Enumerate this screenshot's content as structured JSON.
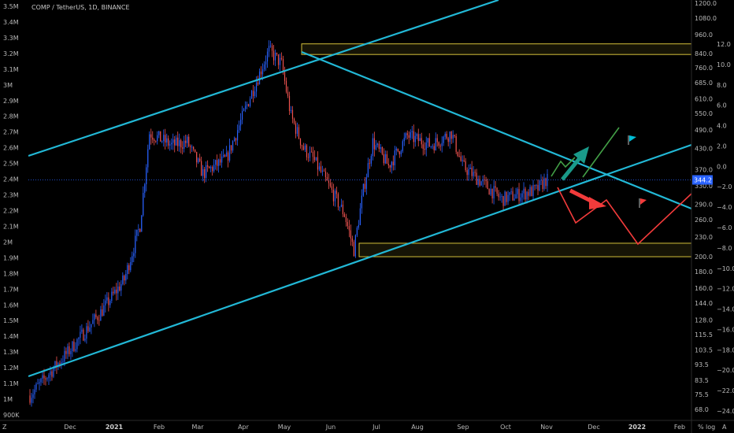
{
  "chart_data": {
    "type": "candlestick",
    "title": "COMP / TetherUS, 1D, BINANCE",
    "current_price": "344.2",
    "left_axis": {
      "ticks": [
        "3.5M",
        "3.4M",
        "3.3M",
        "3.2M",
        "3.1M",
        "3M",
        "2.9M",
        "2.8M",
        "2.7M",
        "2.6M",
        "2.5M",
        "2.4M",
        "2.3M",
        "2.2M",
        "2.1M",
        "2M",
        "1.9M",
        "1.8M",
        "1.7M",
        "1.6M",
        "1.5M",
        "1.4M",
        "1.3M",
        "1.2M",
        "1.1M",
        "1M",
        "900K"
      ]
    },
    "right_axis_price": {
      "ticks": [
        "1200.0",
        "1080.0",
        "960.0",
        "840.0",
        "760.0",
        "685.0",
        "610.0",
        "550.0",
        "490.0",
        "430.0",
        "370.0",
        "330.0",
        "290.0",
        "260.0",
        "230.0",
        "200.0",
        "180.0",
        "160.0",
        "144.0",
        "128.0",
        "115.5",
        "103.5",
        "93.5",
        "83.5",
        "75.5",
        "68.0"
      ],
      "scale": "log"
    },
    "right_axis_pct": {
      "ticks": [
        "12.0",
        "10.0",
        "8.0",
        "6.0",
        "4.0",
        "2.0",
        "0.0",
        "−2.0",
        "−4.0",
        "−6.0",
        "−8.0",
        "−10.0",
        "−12.0",
        "−14.0",
        "−16.0",
        "−18.0",
        "−20.0",
        "−22.0",
        "−24.0"
      ]
    },
    "x_axis": {
      "labels": [
        "Dec",
        "2021",
        "Feb",
        "Mar",
        "Apr",
        "May",
        "Jun",
        "Jul",
        "Aug",
        "Sep",
        "Oct",
        "Nov",
        "Dec",
        "2022",
        "Feb"
      ],
      "bold": [
        "2021",
        "2022"
      ]
    },
    "price_path_anchors": [
      {
        "t": 0,
        "p": 75
      },
      {
        "t": 25,
        "p": 103
      },
      {
        "t": 45,
        "p": 135
      },
      {
        "t": 60,
        "p": 170
      },
      {
        "t": 70,
        "p": 250
      },
      {
        "t": 76,
        "p": 480
      },
      {
        "t": 90,
        "p": 440
      },
      {
        "t": 100,
        "p": 450
      },
      {
        "t": 110,
        "p": 360
      },
      {
        "t": 125,
        "p": 400
      },
      {
        "t": 140,
        "p": 620
      },
      {
        "t": 152,
        "p": 860
      },
      {
        "t": 160,
        "p": 780
      },
      {
        "t": 166,
        "p": 540
      },
      {
        "t": 174,
        "p": 430
      },
      {
        "t": 180,
        "p": 400
      },
      {
        "t": 190,
        "p": 330
      },
      {
        "t": 200,
        "p": 270
      },
      {
        "t": 206,
        "p": 210
      },
      {
        "t": 212,
        "p": 320
      },
      {
        "t": 218,
        "p": 450
      },
      {
        "t": 228,
        "p": 380
      },
      {
        "t": 240,
        "p": 470
      },
      {
        "t": 255,
        "p": 440
      },
      {
        "t": 268,
        "p": 480
      },
      {
        "t": 275,
        "p": 380
      },
      {
        "t": 290,
        "p": 330
      },
      {
        "t": 300,
        "p": 300
      },
      {
        "t": 310,
        "p": 310
      },
      {
        "t": 322,
        "p": 320
      },
      {
        "t": 328,
        "p": 344
      }
    ],
    "zones": [
      {
        "name": "resistance-zone",
        "price_top": 900,
        "price_bottom": 835
      },
      {
        "name": "support-zone",
        "price_top": 220,
        "price_bottom": 200
      }
    ],
    "colors": {
      "up": "#2962ff",
      "down": "#ef5350",
      "channel": "#22b8d6",
      "zone": "#d4c13a",
      "bull": "#43a047",
      "bull_arrow": "#1a9a8a",
      "bear": "#f23b3b",
      "price_tag": "#2962ff"
    }
  },
  "footer": {
    "pct_symbol": "%",
    "log_symbol": "log",
    "auto_symbol": "A"
  }
}
